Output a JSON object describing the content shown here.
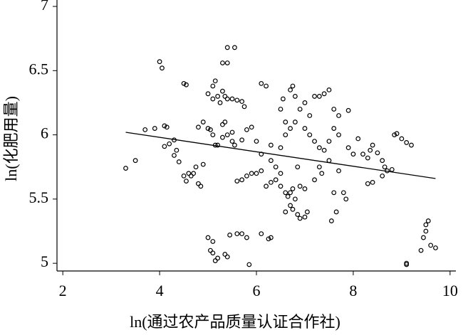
{
  "chart_data": {
    "type": "scatter",
    "x_label": "ln(通过农产品质量认证合作社)",
    "y_label": "ln(化肥用量)",
    "xlim": [
      1.88,
      10.12
    ],
    "xticks": [
      2,
      4,
      6,
      8,
      10
    ],
    "ylim": [
      4.94,
      7.05
    ],
    "yticks": [
      5,
      {
        "value": 5.5,
        "label": "5.5"
      },
      6,
      {
        "value": 6.5,
        "label": "6.5"
      },
      7
    ],
    "series": [
      {
        "color": "#000000",
        "x": [
          3.3,
          3.5,
          3.7,
          3.9,
          4.0,
          4.05,
          4.1,
          4.15,
          4.1,
          4.2,
          4.3,
          4.3,
          4.35,
          4.4,
          4.5,
          4.55,
          4.5,
          4.55,
          4.6,
          4.65,
          4.7,
          4.8,
          4.75,
          4.85,
          4.9,
          4.8,
          4.9,
          5.0,
          5.05,
          5.0,
          5.1,
          5.1,
          5.15,
          5.2,
          5.25,
          5.3,
          5.35,
          5.4,
          5.5,
          5.6,
          5.7,
          5.75,
          5.3,
          5.4,
          5.4,
          5.55,
          5.1,
          5.15,
          5.2,
          5.3,
          5.4,
          5.5,
          5.3,
          5.35,
          5.5,
          5.55,
          5.7,
          5.8,
          5.9,
          5.7,
          5.8,
          5.9,
          6.0,
          6.1,
          5.6,
          5.0,
          5.05,
          5.1,
          5.1,
          5.15,
          5.2,
          5.35,
          5.4,
          5.45,
          5.6,
          5.7,
          5.8,
          5.85,
          6.1,
          6.25,
          6.3,
          6.2,
          6.3,
          6.4,
          6.5,
          6.6,
          6.65,
          6.7,
          6.75,
          6.8,
          6.7,
          6.75,
          6.85,
          6.9,
          7.0,
          7.05,
          6.6,
          6.5,
          6.3,
          6.4,
          6.5,
          6.6,
          6.7,
          6.8,
          6.6,
          6.5,
          6.55,
          6.7,
          6.75,
          6.8,
          6.9,
          7.0,
          7.1,
          7.0,
          7.1,
          7.2,
          7.3,
          7.2,
          7.3,
          7.4,
          7.5,
          7.6,
          7.7,
          7.6,
          7.7,
          7.5,
          7.4,
          7.5,
          7.3,
          7.7,
          7.6,
          7.65,
          7.55,
          7.8,
          7.85,
          7.9,
          7.9,
          8.0,
          8.1,
          8.2,
          8.3,
          8.35,
          8.4,
          8.5,
          8.6,
          8.65,
          8.7,
          8.8,
          8.85,
          8.9,
          9.0,
          9.1,
          9.2,
          8.3,
          8.4,
          8.6,
          9.1,
          9.1,
          9.4,
          9.45,
          9.5,
          9.5,
          9.55,
          9.6,
          9.7,
          6.1,
          6.2,
          6.0,
          6.3,
          6.1,
          6.9,
          7.0,
          7.2,
          7.35,
          6.85
        ],
        "values": [
          5.74,
          5.8,
          6.04,
          6.05,
          6.57,
          6.52,
          6.07,
          6.06,
          5.91,
          5.93,
          5.96,
          5.84,
          5.88,
          5.79,
          6.4,
          6.39,
          5.68,
          5.64,
          5.7,
          5.68,
          5.7,
          5.62,
          5.75,
          5.6,
          5.77,
          6.06,
          6.1,
          6.05,
          6.04,
          6.32,
          6.28,
          6.38,
          6.42,
          6.3,
          6.25,
          6.34,
          6.3,
          6.28,
          6.28,
          6.27,
          6.26,
          6.22,
          6.56,
          6.56,
          6.68,
          6.68,
          6.0,
          5.92,
          5.92,
          5.98,
          6.0,
          6.02,
          6.08,
          6.1,
          5.95,
          5.92,
          5.96,
          6.04,
          6.06,
          5.65,
          5.68,
          5.7,
          5.7,
          5.72,
          5.64,
          5.2,
          5.1,
          5.08,
          5.17,
          5.02,
          5.04,
          5.07,
          5.05,
          5.22,
          5.23,
          5.23,
          5.2,
          4.99,
          5.23,
          5.19,
          5.2,
          5.6,
          5.63,
          5.65,
          5.6,
          5.55,
          5.52,
          5.55,
          5.58,
          5.5,
          5.45,
          5.42,
          5.38,
          5.35,
          5.36,
          5.4,
          5.4,
          5.7,
          5.8,
          5.75,
          5.9,
          6.0,
          6.05,
          6.1,
          6.1,
          6.2,
          6.28,
          6.35,
          6.38,
          6.3,
          6.2,
          6.25,
          6.15,
          6.05,
          6.0,
          5.95,
          5.9,
          6.3,
          6.3,
          6.32,
          6.35,
          6.2,
          6.15,
          6.05,
          6.0,
          5.95,
          5.88,
          5.8,
          5.75,
          5.72,
          5.55,
          5.4,
          5.33,
          5.55,
          5.5,
          6.19,
          5.9,
          5.85,
          5.97,
          5.85,
          5.82,
          5.88,
          5.92,
          5.86,
          5.8,
          5.75,
          5.72,
          5.73,
          6.0,
          6.01,
          5.97,
          5.94,
          5.92,
          5.62,
          5.63,
          5.68,
          5.0,
          4.99,
          5.1,
          5.2,
          5.25,
          5.3,
          5.33,
          5.14,
          5.12,
          6.4,
          6.38,
          5.95,
          5.92,
          5.85,
          5.6,
          5.58,
          5.65,
          5.7,
          5.75
        ]
      }
    ],
    "fit": {
      "color": "#000000",
      "x": [
        3.3,
        9.7
      ],
      "values": [
        6.02,
        5.66
      ]
    }
  }
}
